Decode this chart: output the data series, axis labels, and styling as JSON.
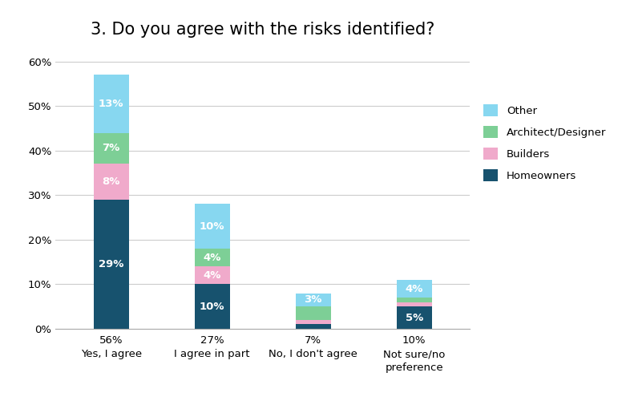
{
  "title": "3. Do you agree with the risks identified?",
  "categories": [
    "Yes, I agree",
    "I agree in part",
    "No, I don't agree",
    "Not sure/no\npreference"
  ],
  "x_labels_pct": [
    "56%",
    "27%",
    "7%",
    "10%"
  ],
  "segments": {
    "Homeowners": [
      29,
      10,
      1,
      5
    ],
    "Builders": [
      8,
      4,
      1,
      1
    ],
    "Architect/Designer": [
      7,
      4,
      3,
      1
    ],
    "Other": [
      13,
      10,
      3,
      4
    ]
  },
  "segment_labels": {
    "Homeowners": [
      "29%",
      "10%",
      "",
      "5%"
    ],
    "Builders": [
      "8%",
      "4%",
      "",
      ""
    ],
    "Architect/Designer": [
      "7%",
      "4%",
      "",
      ""
    ],
    "Other": [
      "13%",
      "10%",
      "3%",
      "4%"
    ]
  },
  "colors": {
    "Homeowners": "#17526e",
    "Builders": "#f0aacb",
    "Architect/Designer": "#7dcf96",
    "Other": "#87d7f0"
  },
  "ylim": [
    0,
    63
  ],
  "yticks": [
    0,
    10,
    20,
    30,
    40,
    50,
    60
  ],
  "ytick_labels": [
    "0%",
    "10%",
    "20%",
    "30%",
    "40%",
    "50%",
    "60%"
  ],
  "background_color": "#ffffff",
  "grid_color": "#cccccc",
  "title_fontsize": 15,
  "label_fontsize": 9.5,
  "tick_fontsize": 9.5
}
